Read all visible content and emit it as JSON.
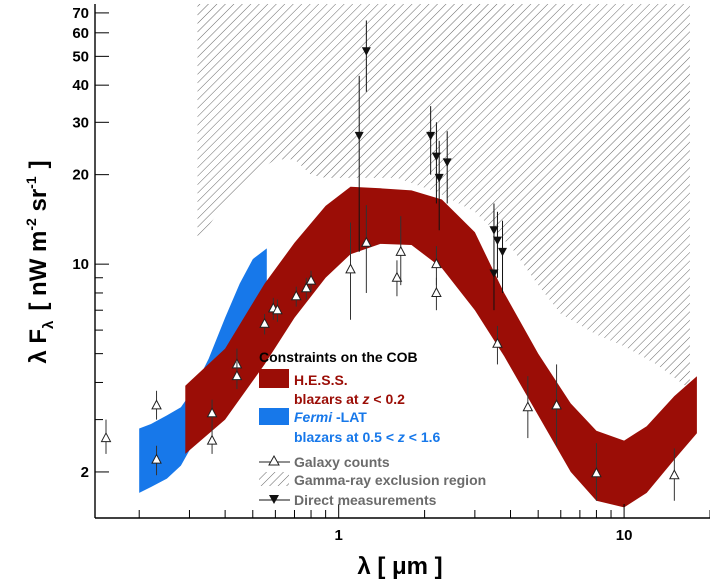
{
  "chart_data": {
    "type": "scatter",
    "title": "",
    "xlabel": "λ  [ μm ]",
    "ylabel": "λ F",
    "ylabel_sub": "λ",
    "ylabel_units": "[ nW m",
    "ylabel_units_sup1": "-2",
    "ylabel_units_mid": " sr",
    "ylabel_units_sup2": "-1",
    "ylabel_units_end": "]",
    "xscale": "log",
    "yscale": "log",
    "xlim": [
      0.14,
      20
    ],
    "ylim": [
      1.4,
      75
    ],
    "x_ticks": [
      {
        "value": 1,
        "label": "1"
      },
      {
        "value": 10,
        "label": "10"
      }
    ],
    "y_ticks": [
      {
        "value": 2,
        "label": "2"
      },
      {
        "value": 10,
        "label": "10"
      },
      {
        "value": 20,
        "label": "20"
      },
      {
        "value": 30,
        "label": "30"
      },
      {
        "value": 40,
        "label": "40"
      },
      {
        "value": 50,
        "label": "50"
      },
      {
        "value": 60,
        "label": "60"
      },
      {
        "value": 70,
        "label": "70"
      }
    ],
    "legend": {
      "placement": "bottom-center",
      "title": "Constraints on the COB",
      "hess_label": "H.E.S.S.",
      "hess_sub_pre": "blazars at  ",
      "hess_sub_z": "z",
      "hess_sub_post": " < 0.2",
      "fermi_label_italic": "Fermi",
      "fermi_label_rest": " -LAT",
      "fermi_sub_pre": "blazars at 0.5 <  ",
      "fermi_sub_z": "z",
      "fermi_sub_post": " < 1.6",
      "galaxy_label": "Galaxy counts",
      "exclusion_label": "Gamma-ray exclusion region",
      "direct_label": "Direct measurements"
    },
    "colors": {
      "hess": "#9b0d06",
      "fermi": "#1778ea",
      "galaxy": "#222222",
      "direct": "#111111",
      "hatch": "#555555",
      "legend_text": "#6b6b6b"
    },
    "series": [
      {
        "kind": "band",
        "name": "H.E.S.S.",
        "x": [
          0.29,
          0.4,
          0.55,
          0.7,
          0.9,
          1.1,
          1.4,
          1.8,
          2.3,
          3,
          3.8,
          5,
          6.5,
          8,
          10,
          12,
          15,
          18
        ],
        "y_low": [
          2.3,
          3.0,
          4.6,
          6.6,
          9.0,
          10.8,
          11.7,
          11.6,
          9.7,
          7.0,
          4.9,
          3.1,
          2.0,
          1.6,
          1.52,
          1.7,
          2.2,
          2.7
        ],
        "y_high": [
          3.9,
          5.2,
          8.6,
          11.8,
          15.7,
          18.2,
          18.0,
          17.7,
          16.5,
          12.8,
          8.0,
          5.0,
          3.4,
          2.75,
          2.55,
          2.85,
          3.6,
          4.2
        ]
      },
      {
        "kind": "band",
        "name": "Fermi -LAT",
        "x": [
          0.2,
          0.22,
          0.25,
          0.28,
          0.31,
          0.35,
          0.4,
          0.45,
          0.5,
          0.56
        ],
        "y_low": [
          1.7,
          1.78,
          1.9,
          2.1,
          2.5,
          3.3,
          4.5,
          6.0,
          7.2,
          7.6
        ],
        "y_high": [
          2.8,
          2.9,
          3.1,
          3.3,
          3.8,
          4.8,
          6.6,
          8.6,
          10.4,
          11.3
        ]
      },
      {
        "kind": "band",
        "name": "Gamma-ray exclusion region",
        "x": [
          0.32,
          0.4,
          0.5,
          0.6,
          0.7,
          0.8,
          0.9,
          1.2,
          1.6,
          2.2,
          3.0,
          4.0,
          5.0,
          6.0,
          8.0,
          10.0,
          13.0,
          17.0
        ],
        "y_low": [
          12,
          16,
          20,
          22.5,
          22.5,
          20,
          19.5,
          19.5,
          19.5,
          17.5,
          15,
          11.5,
          8.5,
          6.8,
          5.8,
          5.3,
          4.6,
          3.8
        ],
        "y_high": [
          75,
          75,
          75,
          75,
          75,
          75,
          75,
          75,
          75,
          75,
          75,
          75,
          75,
          75,
          75,
          75,
          75,
          75
        ]
      },
      {
        "kind": "points",
        "name": "Galaxy counts",
        "points": [
          {
            "x": 0.153,
            "y": 2.6,
            "lo": 2.3,
            "hi": 3.0
          },
          {
            "x": 0.23,
            "y": 2.2,
            "lo": 1.95,
            "hi": 2.45
          },
          {
            "x": 0.23,
            "y": 3.35,
            "lo": 3.0,
            "hi": 3.75
          },
          {
            "x": 0.36,
            "y": 3.15,
            "lo": 2.8,
            "hi": 3.5
          },
          {
            "x": 0.36,
            "y": 2.55,
            "lo": 2.3,
            "hi": 2.8
          },
          {
            "x": 0.44,
            "y": 4.6,
            "lo": 4.1,
            "hi": 5.2
          },
          {
            "x": 0.44,
            "y": 4.2,
            "lo": 3.8,
            "hi": 4.7
          },
          {
            "x": 0.55,
            "y": 6.3,
            "lo": 5.8,
            "hi": 6.8
          },
          {
            "x": 0.59,
            "y": 7.1,
            "lo": 6.5,
            "hi": 7.7
          },
          {
            "x": 0.61,
            "y": 7.0,
            "lo": 6.4,
            "hi": 7.6
          },
          {
            "x": 0.71,
            "y": 7.8,
            "lo": 7.2,
            "hi": 8.4
          },
          {
            "x": 0.77,
            "y": 8.3,
            "lo": 7.6,
            "hi": 9.0
          },
          {
            "x": 0.8,
            "y": 8.8,
            "lo": 8.1,
            "hi": 9.5
          },
          {
            "x": 1.1,
            "y": 9.6,
            "lo": 6.5,
            "hi": 13.8
          },
          {
            "x": 1.25,
            "y": 11.8,
            "lo": 8.0,
            "hi": 15.8
          },
          {
            "x": 1.6,
            "y": 9.0,
            "lo": 7.8,
            "hi": 10.3
          },
          {
            "x": 1.65,
            "y": 11.0,
            "lo": 8.5,
            "hi": 14.5
          },
          {
            "x": 2.2,
            "y": 8.0,
            "lo": 7.0,
            "hi": 9.0
          },
          {
            "x": 2.2,
            "y": 10.0,
            "lo": 8.5,
            "hi": 11.5
          },
          {
            "x": 3.6,
            "y": 5.4,
            "lo": 4.6,
            "hi": 6.2
          },
          {
            "x": 4.6,
            "y": 3.3,
            "lo": 2.6,
            "hi": 4.2
          },
          {
            "x": 5.8,
            "y": 3.35,
            "lo": 2.45,
            "hi": 4.6
          },
          {
            "x": 8.0,
            "y": 1.98,
            "lo": 1.6,
            "hi": 2.5
          },
          {
            "x": 15.0,
            "y": 1.95,
            "lo": 1.6,
            "hi": 2.4
          }
        ]
      },
      {
        "kind": "points",
        "name": "Direct measurements",
        "points": [
          {
            "x": 1.25,
            "y": 52,
            "lo": 38,
            "hi": 66
          },
          {
            "x": 1.18,
            "y": 27,
            "lo": 11,
            "hi": 43
          },
          {
            "x": 2.1,
            "y": 27,
            "lo": 20,
            "hi": 34
          },
          {
            "x": 2.2,
            "y": 23,
            "lo": 16,
            "hi": 30
          },
          {
            "x": 2.25,
            "y": 19.5,
            "lo": 13,
            "hi": 26
          },
          {
            "x": 2.4,
            "y": 22,
            "lo": 16,
            "hi": 28
          },
          {
            "x": 3.5,
            "y": 13,
            "lo": 10,
            "hi": 16
          },
          {
            "x": 3.6,
            "y": 12,
            "lo": 9,
            "hi": 15
          },
          {
            "x": 3.75,
            "y": 11,
            "lo": 8,
            "hi": 14
          },
          {
            "x": 3.5,
            "y": 9.3,
            "lo": 7,
            "hi": 12
          }
        ]
      }
    ]
  }
}
